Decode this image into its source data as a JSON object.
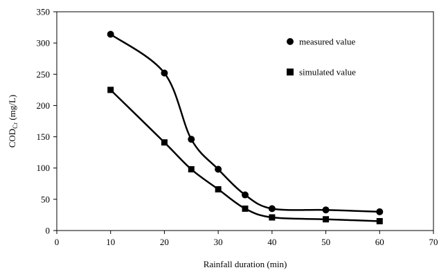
{
  "chart_data": {
    "type": "line",
    "xlabel": "Rainfall duration (min)",
    "ylabel": "CODCr (mg/L)",
    "ylabel_main": "COD",
    "ylabel_sub": "Cr",
    "ylabel_unit": " (mg/L)",
    "xlim": [
      0,
      70
    ],
    "ylim": [
      0,
      350
    ],
    "x_ticks": [
      "0",
      "10",
      "20",
      "30",
      "40",
      "50",
      "60",
      "70"
    ],
    "y_ticks": [
      "0",
      "50",
      "100",
      "150",
      "200",
      "250",
      "300",
      "350"
    ],
    "grid": false,
    "legend_position": "top-right",
    "series": [
      {
        "name": "measured value",
        "marker": "circle",
        "color": "#000000",
        "x": [
          10,
          20,
          25,
          30,
          35,
          40,
          50,
          60
        ],
        "y": [
          314,
          252,
          146,
          98,
          57,
          35,
          33,
          30
        ]
      },
      {
        "name": "simulated value",
        "marker": "square",
        "color": "#000000",
        "x": [
          10,
          20,
          25,
          30,
          35,
          40,
          50,
          60
        ],
        "y": [
          225,
          141,
          98,
          66,
          35,
          21,
          18,
          15
        ]
      }
    ]
  }
}
